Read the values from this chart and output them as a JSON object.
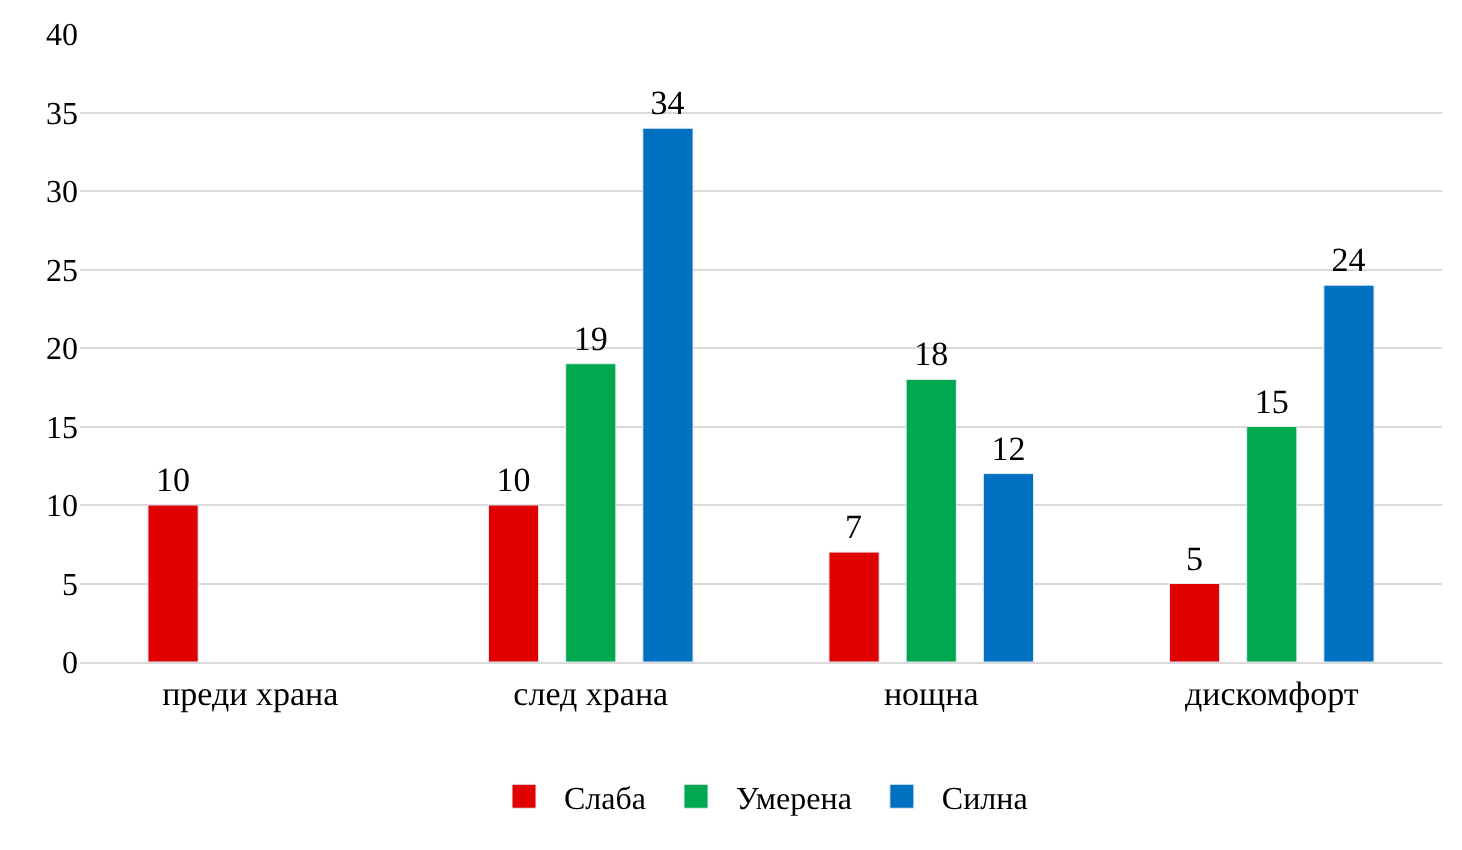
{
  "chart_data": {
    "type": "bar",
    "categories": [
      "преди храна",
      "след храна",
      "нощна",
      "дискомфорт"
    ],
    "series": [
      {
        "name": "Слаба",
        "color": "#e00000",
        "values": [
          10,
          10,
          7,
          5
        ]
      },
      {
        "name": "Умерена",
        "color": "#00a84f",
        "values": [
          null,
          19,
          18,
          15
        ]
      },
      {
        "name": "Силна",
        "color": "#0070c0",
        "values": [
          null,
          34,
          12,
          24
        ]
      }
    ],
    "ylim": [
      0,
      40
    ],
    "yticks": [
      0,
      5,
      10,
      15,
      20,
      25,
      30,
      35,
      40
    ],
    "grid": "y",
    "legend": "bottom",
    "data_labels": true
  }
}
